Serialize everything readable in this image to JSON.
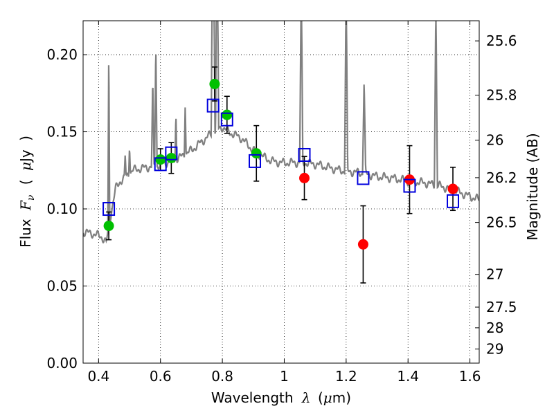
{
  "chart_data": {
    "type": "scatter",
    "xlabel": {
      "prefix": "Wavelength",
      "symbol": "λ",
      "unit_open": "(",
      "unit_mu": "μ",
      "unit_rest": "m)"
    },
    "ylabel": {
      "prefix": "Flux",
      "symbol": "F",
      "sub": "ν",
      "unit_open": "(",
      "unit_mu": "μ",
      "unit_rest": "Jy",
      "unit_close": ")"
    },
    "y2label": "Magnitude (AB)",
    "xlim": [
      0.35,
      1.63
    ],
    "ylim": [
      0.0,
      0.222
    ],
    "grid": true,
    "xticks": [
      {
        "value": 0.4,
        "label": "0.4"
      },
      {
        "value": 0.6,
        "label": "0.6"
      },
      {
        "value": 0.8,
        "label": "0.8"
      },
      {
        "value": 1.0,
        "label": "1"
      },
      {
        "value": 1.2,
        "label": "1.2"
      },
      {
        "value": 1.4,
        "label": "1.4"
      },
      {
        "value": 1.6,
        "label": "1.6"
      }
    ],
    "yticks": [
      {
        "value": 0.0,
        "label": "0.00"
      },
      {
        "value": 0.05,
        "label": "0.05"
      },
      {
        "value": 0.1,
        "label": "0.10"
      },
      {
        "value": 0.15,
        "label": "0.15"
      },
      {
        "value": 0.2,
        "label": "0.20"
      }
    ],
    "y2ticks": [
      {
        "value": 25.6,
        "label": "25.6"
      },
      {
        "value": 25.8,
        "label": "25.8"
      },
      {
        "value": 26.0,
        "label": "26"
      },
      {
        "value": 26.2,
        "label": "26.2"
      },
      {
        "value": 26.5,
        "label": "26.5"
      },
      {
        "value": 27.0,
        "label": "27"
      },
      {
        "value": 27.5,
        "label": "27.5"
      },
      {
        "value": 28.0,
        "label": "28"
      },
      {
        "value": 29.0,
        "label": "29"
      }
    ],
    "colors": {
      "model": "#808080",
      "detected": "#00c000",
      "infrared": "#ff0000",
      "model_phot": "#0000dd",
      "errorbar": "#000000"
    },
    "model_spectrum": {
      "continuum": [
        [
          0.35,
          0.085
        ],
        [
          0.38,
          0.084
        ],
        [
          0.41,
          0.082
        ],
        [
          0.425,
          0.078
        ],
        [
          0.44,
          0.097
        ],
        [
          0.455,
          0.113
        ],
        [
          0.47,
          0.118
        ],
        [
          0.49,
          0.121
        ],
        [
          0.51,
          0.125
        ],
        [
          0.53,
          0.126
        ],
        [
          0.56,
          0.127
        ],
        [
          0.59,
          0.128
        ],
        [
          0.62,
          0.13
        ],
        [
          0.66,
          0.133
        ],
        [
          0.7,
          0.138
        ],
        [
          0.73,
          0.143
        ],
        [
          0.76,
          0.148
        ],
        [
          0.78,
          0.151
        ],
        [
          0.8,
          0.153
        ],
        [
          0.82,
          0.15
        ],
        [
          0.84,
          0.148
        ],
        [
          0.86,
          0.146
        ],
        [
          0.88,
          0.142
        ],
        [
          0.9,
          0.138
        ],
        [
          0.93,
          0.134
        ],
        [
          0.96,
          0.131
        ],
        [
          0.99,
          0.13
        ],
        [
          1.02,
          0.13
        ],
        [
          1.06,
          0.13
        ],
        [
          1.1,
          0.129
        ],
        [
          1.14,
          0.127
        ],
        [
          1.18,
          0.125
        ],
        [
          1.22,
          0.124
        ],
        [
          1.26,
          0.123
        ],
        [
          1.3,
          0.121
        ],
        [
          1.35,
          0.12
        ],
        [
          1.4,
          0.118
        ],
        [
          1.45,
          0.117
        ],
        [
          1.5,
          0.115
        ],
        [
          1.55,
          0.112
        ],
        [
          1.6,
          0.108
        ],
        [
          1.63,
          0.106
        ]
      ],
      "emission_lines": [
        {
          "x": 0.433,
          "h": 0.115,
          "w": 0.003
        },
        {
          "x": 0.486,
          "h": 0.014,
          "w": 0.003
        },
        {
          "x": 0.5,
          "h": 0.02,
          "w": 0.003
        },
        {
          "x": 0.575,
          "h": 0.055,
          "w": 0.004
        },
        {
          "x": 0.585,
          "h": 0.08,
          "w": 0.004
        },
        {
          "x": 0.65,
          "h": 0.03,
          "w": 0.003
        },
        {
          "x": 0.68,
          "h": 0.035,
          "w": 0.003
        },
        {
          "x": 0.77,
          "h": 0.2,
          "w": 0.006
        },
        {
          "x": 0.783,
          "h": 0.15,
          "w": 0.005
        },
        {
          "x": 1.055,
          "h": 0.12,
          "w": 0.005
        },
        {
          "x": 1.2,
          "h": 0.12,
          "w": 0.005
        },
        {
          "x": 1.258,
          "h": 0.06,
          "w": 0.005
        },
        {
          "x": 1.49,
          "h": 0.12,
          "w": 0.005
        }
      ]
    },
    "series": [
      {
        "marker": "circle",
        "color_key": "detected",
        "points": [
          {
            "x": 0.433,
            "y": 0.089,
            "yerr": 0.009
          },
          {
            "x": 0.6,
            "y": 0.132,
            "yerr": 0.007
          },
          {
            "x": 0.635,
            "y": 0.133,
            "yerr": 0.01
          },
          {
            "x": 0.775,
            "y": 0.181,
            "yerr": 0.011
          },
          {
            "x": 0.815,
            "y": 0.161,
            "yerr": 0.012
          },
          {
            "x": 0.91,
            "y": 0.136,
            "yerr": 0.018
          }
        ]
      },
      {
        "marker": "circle",
        "color_key": "infrared",
        "points": [
          {
            "x": 1.065,
            "y": 0.12,
            "yerr": 0.014
          },
          {
            "x": 1.255,
            "y": 0.077,
            "yerr": 0.025
          },
          {
            "x": 1.405,
            "y": 0.119,
            "yerr": 0.022
          },
          {
            "x": 1.545,
            "y": 0.113,
            "yerr": 0.014
          }
        ]
      },
      {
        "marker": "square",
        "color_key": "model_phot",
        "points": [
          {
            "x": 0.433,
            "y": 0.1
          },
          {
            "x": 0.6,
            "y": 0.129
          },
          {
            "x": 0.635,
            "y": 0.136
          },
          {
            "x": 0.77,
            "y": 0.167
          },
          {
            "x": 0.815,
            "y": 0.158
          },
          {
            "x": 0.905,
            "y": 0.131
          },
          {
            "x": 1.065,
            "y": 0.135
          },
          {
            "x": 1.255,
            "y": 0.12
          },
          {
            "x": 1.405,
            "y": 0.115
          },
          {
            "x": 1.545,
            "y": 0.105
          }
        ]
      }
    ]
  }
}
